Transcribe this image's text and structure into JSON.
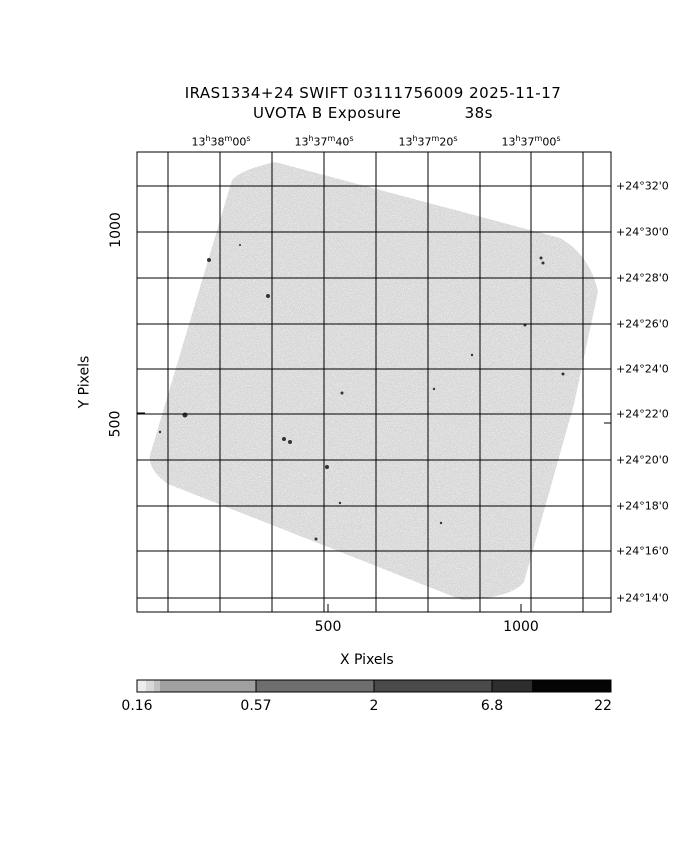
{
  "title_line1": "IRAS1334+24 SWIFT 03111756009 2025-11-17",
  "title_line2_left": "UVOTA B Exposure",
  "title_line2_right": "38s",
  "xlabel": "X Pixels",
  "ylabel": "Y Pixels",
  "x_ticks": [
    "500",
    "1000"
  ],
  "y_ticks": [
    "500",
    "1000"
  ],
  "ra_ticks": [
    {
      "h": "13",
      "m": "38",
      "s": "00"
    },
    {
      "h": "13",
      "m": "37",
      "s": "40"
    },
    {
      "h": "13",
      "m": "37",
      "s": "20"
    },
    {
      "h": "13",
      "m": "37",
      "s": "00"
    }
  ],
  "dec_ticks": [
    "+24°32'0",
    "+24°30'0",
    "+24°28'0",
    "+24°26'0",
    "+24°24'0",
    "+24°22'0",
    "+24°20'0",
    "+24°18'0",
    "+24°16'0",
    "+24°14'0"
  ],
  "colorbar_ticks": [
    "0.16",
    "0.57",
    "2",
    "6.8",
    "22"
  ],
  "colors": {
    "background": "#ffffff",
    "image_gray": "#a0a0a0",
    "grid": "#000000"
  }
}
